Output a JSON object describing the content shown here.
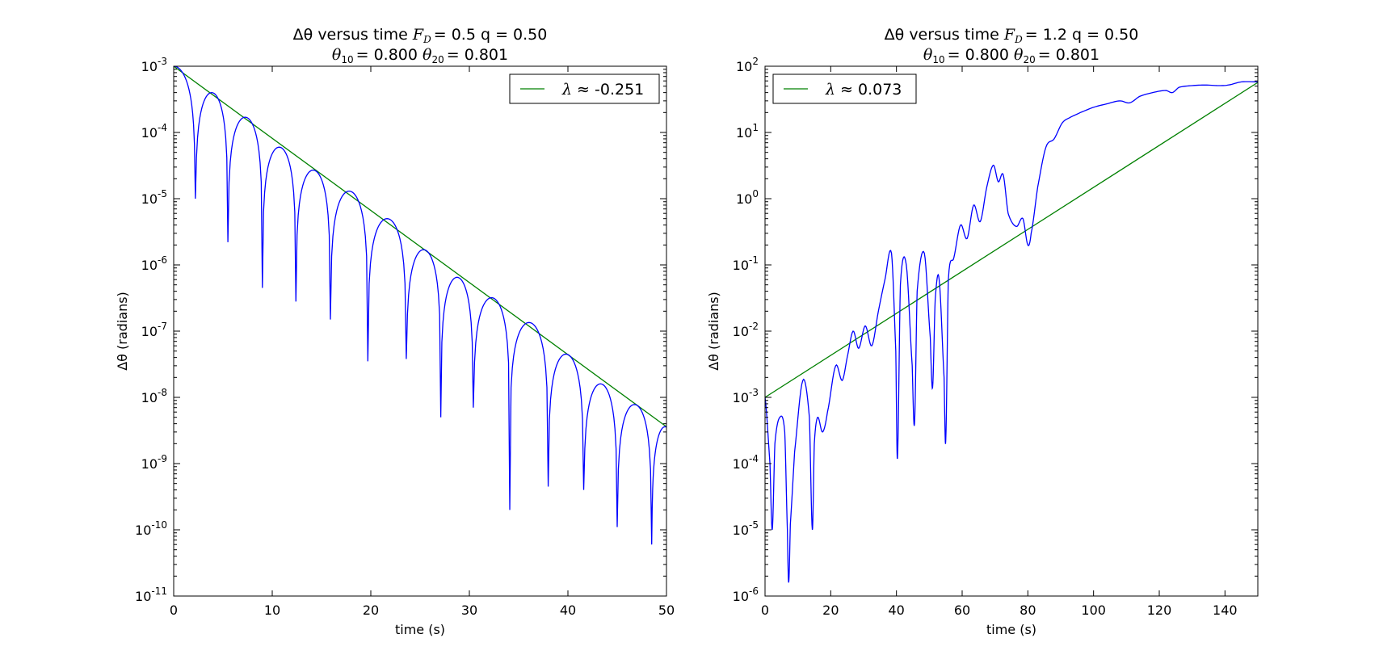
{
  "chart_data": [
    {
      "type": "line",
      "title": "Δθ versus time   F_D = 0.5   q = 0.50",
      "title_parts": {
        "prefix": "Δθ versus time",
        "force_symbol": "F",
        "force_sub": "D",
        "force_value": "= 0.5",
        "q": "q = 0.50"
      },
      "subtitle": "θ10 = 0.800   θ20 = 0.801",
      "subtitle_parts": {
        "t1_symbol": "θ",
        "t1_sub": "10",
        "t1_value": "= 0.800",
        "t2_symbol": "θ",
        "t2_sub": "20",
        "t2_value": "= 0.801"
      },
      "xlabel": "time (s)",
      "ylabel": "Δθ (radians)",
      "yscale": "log",
      "xlim": [
        0,
        50
      ],
      "ylim_exp": [
        -11,
        -3
      ],
      "xticks": [
        0,
        10,
        20,
        30,
        40,
        50
      ],
      "yticks_exp": [
        -11,
        -10,
        -9,
        -8,
        -7,
        -6,
        -5,
        -4,
        -3
      ],
      "grid": false,
      "legend_placement": "top-right",
      "lyapunov": -0.251,
      "series": [
        {
          "name": "λ ≈ -0.251",
          "legend_symbol": "λ",
          "legend_value": "≈ -0.251",
          "color": "#008000",
          "kind": "fit",
          "x": [
            0,
            50
          ],
          "y": [
            0.001,
            3.6e-09
          ]
        },
        {
          "color": "#0000ff",
          "kind": "data",
          "y0": 0.001,
          "peak_times": [
            3.5,
            7.0,
            10.4,
            13.9,
            17.5,
            21.0,
            24.5,
            28.0,
            31.7,
            35.2,
            38.8,
            42.3,
            45.9,
            49.7
          ],
          "peak_values": [
            0.0004,
            0.00017,
            6e-05,
            2.7e-05,
            1.3e-05,
            5e-06,
            1.7e-06,
            6.5e-07,
            3.2e-07,
            1.35e-07,
            4.5e-08,
            1.6e-08,
            7.8e-09,
            3.6e-09
          ],
          "zero_times": [
            2.2,
            5.5,
            9.0,
            12.4,
            15.9,
            19.7,
            23.6,
            27.1,
            30.4,
            34.1,
            38.0,
            41.6,
            45.0,
            48.5
          ],
          "zero_values": [
            1e-05,
            2.2e-06,
            4.5e-07,
            2.8e-07,
            1.5e-07,
            3.5e-08,
            3.8e-08,
            5e-09,
            7e-09,
            2e-10,
            4.5e-10,
            4e-10,
            1.1e-10,
            6e-11
          ]
        }
      ]
    },
    {
      "type": "line",
      "title": "Δθ versus time   F_D = 1.2   q = 0.50",
      "title_parts": {
        "prefix": "Δθ versus time",
        "force_symbol": "F",
        "force_sub": "D",
        "force_value": "= 1.2",
        "q": "q = 0.50"
      },
      "subtitle": "θ10 = 0.800   θ20 = 0.801",
      "subtitle_parts": {
        "t1_symbol": "θ",
        "t1_sub": "10",
        "t1_value": "= 0.800",
        "t2_symbol": "θ",
        "t2_sub": "20",
        "t2_value": "= 0.801"
      },
      "xlabel": "time (s)",
      "ylabel": "Δθ (radians)",
      "yscale": "log",
      "xlim": [
        0,
        150
      ],
      "ylim_exp": [
        -6,
        2
      ],
      "xticks": [
        0,
        20,
        40,
        60,
        80,
        100,
        120,
        140
      ],
      "yticks_exp": [
        -6,
        -5,
        -4,
        -3,
        -2,
        -1,
        0,
        1,
        2
      ],
      "grid": false,
      "legend_placement": "top-left",
      "lyapunov": 0.073,
      "series": [
        {
          "name": "λ ≈ 0.073",
          "legend_symbol": "λ",
          "legend_value": "≈ 0.073",
          "color": "#008000",
          "kind": "fit",
          "x": [
            0,
            150
          ],
          "y": [
            0.001,
            57
          ]
        },
        {
          "color": "#0000ff",
          "kind": "data",
          "x": [
            0,
            1.5,
            2.2,
            3.0,
            4.5,
            6.0,
            6.8,
            7.2,
            7.7,
            9.0,
            11.5,
            13.5,
            14.4,
            15.0,
            16.0,
            17.5,
            19.0,
            21.5,
            23.5,
            25.0,
            26.8,
            28.5,
            30.5,
            32.5,
            34.5,
            36.5,
            38.5,
            39.8,
            40.3,
            41.2,
            43.0,
            44.8,
            45.5,
            46.3,
            48.5,
            50.3,
            51.0,
            51.8,
            53.0,
            54.5,
            55.0,
            55.8,
            57.5,
            59.5,
            61.5,
            63.5,
            65.5,
            67.5,
            69.5,
            71.0,
            72.5,
            74.0,
            76.5,
            78.5,
            80.0,
            81.0,
            83.0,
            85.5,
            88.0,
            90.5,
            93.0,
            96.0,
            100.0,
            104.0,
            108.0,
            111.0,
            114.0,
            118.0,
            122.0,
            124.0,
            126.0,
            130.0,
            134.0,
            138.0,
            141.0,
            145.0,
            150.0
          ],
          "y": [
            0.001,
            0.0001,
            1e-05,
            0.0002,
            0.0005,
            0.0003,
            1e-05,
            1.6e-06,
            1.2e-05,
            0.00015,
            0.0018,
            0.0005,
            1e-05,
            0.0002,
            0.0005,
            0.0003,
            0.0006,
            0.003,
            0.0018,
            0.004,
            0.01,
            0.0055,
            0.012,
            0.006,
            0.02,
            0.06,
            0.15,
            0.005,
            0.00012,
            0.05,
            0.1,
            0.003,
            0.0004,
            0.04,
            0.15,
            0.008,
            0.0014,
            0.03,
            0.06,
            0.002,
            0.00022,
            0.06,
            0.13,
            0.4,
            0.25,
            0.8,
            0.45,
            1.5,
            3.2,
            1.8,
            2.3,
            0.6,
            0.38,
            0.5,
            0.2,
            0.3,
            1.5,
            6.0,
            8.0,
            14.0,
            17.0,
            20.0,
            24.0,
            27.0,
            30.0,
            28.0,
            35.0,
            40.0,
            43.0,
            40.0,
            48.0,
            51.0,
            52.0,
            51.0,
            52.0,
            58.0,
            58.0
          ]
        }
      ]
    }
  ]
}
